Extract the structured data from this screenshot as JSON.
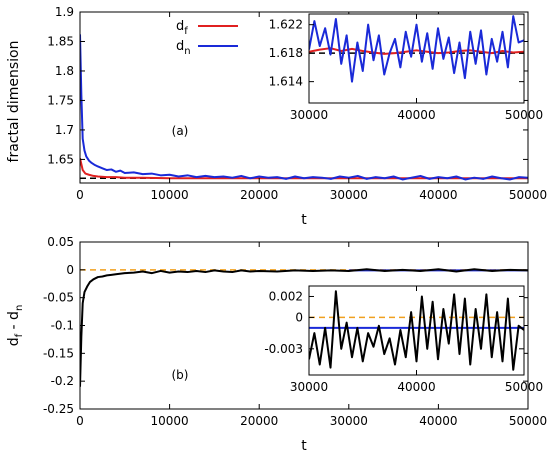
{
  "chart_data": [
    {
      "panel": "main-top",
      "type": "line",
      "ylabel": "fractal dimension",
      "xlabel": "t",
      "panel_label": "(a)",
      "xlim": [
        0,
        50000
      ],
      "ylim": [
        1.61,
        1.9
      ],
      "xticks": [
        0,
        10000,
        20000,
        30000,
        40000,
        50000
      ],
      "xtick_labels": [
        "0",
        "10000",
        "20000",
        "30000",
        "40000",
        "50000"
      ],
      "yticks": [
        1.65,
        1.7,
        1.75,
        1.8,
        1.85,
        1.9
      ],
      "ytick_labels": [
        "1.65",
        "1.7",
        "1.75",
        "1.8",
        "1.85",
        "1.9"
      ],
      "legend": {
        "position": "top-center",
        "entries": [
          {
            "label_base": "d",
            "label_sub": "f",
            "color": "#e02020"
          },
          {
            "label_base": "d",
            "label_sub": "n",
            "color": "#1a2ad8"
          }
        ]
      },
      "reference": {
        "y": 1.618,
        "style": "dashed",
        "color": "#000000"
      },
      "series": [
        {
          "name": "df",
          "color": "#e02020",
          "x": [
            0,
            300,
            600,
            1000,
            1500,
            2000,
            3000,
            4000,
            5000,
            7000,
            10000,
            15000,
            20000,
            30000,
            40000,
            50000
          ],
          "y": [
            1.652,
            1.632,
            1.626,
            1.624,
            1.622,
            1.621,
            1.62,
            1.62,
            1.619,
            1.619,
            1.618,
            1.618,
            1.618,
            1.618,
            1.618,
            1.618
          ]
        },
        {
          "name": "dn",
          "color": "#1a2ad8",
          "x": [
            0,
            150,
            300,
            500,
            700,
            1000,
            1300,
            1600,
            2000,
            2500,
            3000,
            3500,
            4000,
            4500,
            5000,
            6000,
            7000,
            8000,
            9000,
            10000,
            11000,
            12000,
            13000,
            14000,
            15000,
            16000,
            17000,
            18000,
            19000,
            20000,
            21000,
            22000,
            23000,
            24000,
            25000,
            26000,
            27000,
            28000,
            29000,
            30000,
            31000,
            32000,
            33000,
            34000,
            35000,
            36000,
            37000,
            38000,
            39000,
            40000,
            41000,
            42000,
            43000,
            44000,
            45000,
            46000,
            47000,
            48000,
            49000,
            50000
          ],
          "y": [
            1.862,
            1.76,
            1.685,
            1.665,
            1.655,
            1.648,
            1.644,
            1.641,
            1.638,
            1.635,
            1.632,
            1.633,
            1.629,
            1.631,
            1.627,
            1.628,
            1.625,
            1.626,
            1.623,
            1.624,
            1.621,
            1.623,
            1.62,
            1.622,
            1.62,
            1.621,
            1.619,
            1.622,
            1.618,
            1.621,
            1.619,
            1.62,
            1.617,
            1.621,
            1.618,
            1.62,
            1.619,
            1.617,
            1.621,
            1.619,
            1.622,
            1.617,
            1.62,
            1.618,
            1.621,
            1.616,
            1.619,
            1.622,
            1.617,
            1.62,
            1.618,
            1.621,
            1.616,
            1.619,
            1.617,
            1.621,
            1.618,
            1.616,
            1.62,
            1.619
          ]
        }
      ]
    },
    {
      "panel": "inset-top",
      "type": "line",
      "xlim": [
        30000,
        50000
      ],
      "ylim": [
        1.611,
        1.6235
      ],
      "xticks": [
        30000,
        40000,
        50000
      ],
      "xtick_labels": [
        "30000",
        "40000",
        "50000"
      ],
      "yticks": [
        1.614,
        1.618,
        1.622
      ],
      "ytick_labels": [
        "1.614",
        "1.618",
        "1.622"
      ],
      "reference": {
        "y": 1.618,
        "style": "dashed",
        "color": "#000000"
      },
      "series": [
        {
          "name": "df",
          "color": "#e02020",
          "x": [
            30000,
            31000,
            32000,
            33000,
            34000,
            35000,
            36000,
            37000,
            38000,
            39000,
            40000,
            41000,
            42000,
            43000,
            44000,
            45000,
            46000,
            47000,
            48000,
            49000,
            50000
          ],
          "y": [
            1.6182,
            1.6185,
            1.6187,
            1.6183,
            1.6186,
            1.6183,
            1.6181,
            1.6179,
            1.618,
            1.6182,
            1.6184,
            1.6182,
            1.618,
            1.6181,
            1.6183,
            1.6184,
            1.6182,
            1.618,
            1.6183,
            1.6181,
            1.6182
          ]
        },
        {
          "name": "dn",
          "color": "#1a2ad8",
          "x": [
            30000,
            30500,
            31000,
            31500,
            32000,
            32500,
            33000,
            33500,
            34000,
            34500,
            35000,
            35500,
            36000,
            36500,
            37000,
            37500,
            38000,
            38500,
            39000,
            39500,
            40000,
            40500,
            41000,
            41500,
            42000,
            42500,
            43000,
            43500,
            44000,
            44500,
            45000,
            45500,
            46000,
            46500,
            47000,
            47500,
            48000,
            48500,
            49000,
            49500,
            50000
          ],
          "y": [
            1.6185,
            1.6225,
            1.619,
            1.6215,
            1.6178,
            1.6228,
            1.6165,
            1.6205,
            1.614,
            1.6195,
            1.6155,
            1.622,
            1.617,
            1.6205,
            1.615,
            1.618,
            1.62,
            1.616,
            1.621,
            1.6175,
            1.622,
            1.6168,
            1.6208,
            1.6158,
            1.6215,
            1.6172,
            1.6202,
            1.6152,
            1.6195,
            1.6145,
            1.621,
            1.6165,
            1.6212,
            1.615,
            1.62,
            1.6168,
            1.621,
            1.616,
            1.6232,
            1.6195,
            1.6198
          ]
        }
      ]
    },
    {
      "panel": "main-bottom",
      "type": "line",
      "ylabel_base": "d",
      "ylabel_sub1": "f",
      "ylabel_mid": " - d",
      "ylabel_sub2": "n",
      "xlabel": "t",
      "panel_label": "(b)",
      "xlim": [
        0,
        50000
      ],
      "ylim": [
        -0.25,
        0.05
      ],
      "xticks": [
        0,
        10000,
        20000,
        30000,
        40000,
        50000
      ],
      "xtick_labels": [
        "0",
        "10000",
        "20000",
        "30000",
        "40000",
        "50000"
      ],
      "yticks": [
        0.05,
        0,
        -0.05,
        -0.1,
        -0.15,
        -0.2,
        -0.25
      ],
      "ytick_labels": [
        "0.05",
        "0",
        "-0.05",
        "-0.1",
        "-0.15",
        "-0.2",
        "-0.25"
      ],
      "reference_lines": [
        {
          "y": 0,
          "style": "dashed",
          "color": "#f0a020"
        },
        {
          "y": -0.001,
          "style": "solid",
          "color": "#1a2ad8",
          "x_from": 30000
        }
      ],
      "series": [
        {
          "name": "df - dn",
          "color": "#000000",
          "x": [
            0,
            150,
            300,
            500,
            800,
            1100,
            1500,
            2000,
            2500,
            3000,
            3500,
            4000,
            5000,
            6000,
            7000,
            8000,
            9000,
            10000,
            11000,
            12000,
            13000,
            14000,
            15000,
            16000,
            17000,
            18000,
            19000,
            20000,
            22000,
            24000,
            26000,
            28000,
            30000,
            32000,
            34000,
            36000,
            38000,
            40000,
            42000,
            44000,
            46000,
            48000,
            50000
          ],
          "y": [
            -0.21,
            -0.12,
            -0.06,
            -0.04,
            -0.03,
            -0.022,
            -0.017,
            -0.013,
            -0.012,
            -0.01,
            -0.009,
            -0.008,
            -0.006,
            -0.005,
            -0.003,
            -0.006,
            -0.002,
            -0.005,
            -0.003,
            -0.004,
            -0.002,
            -0.004,
            -0.001,
            -0.003,
            -0.004,
            -0.001,
            -0.003,
            -0.002,
            -0.003,
            -0.001,
            -0.002,
            -0.001,
            -0.002,
            0.001,
            -0.002,
            0.0,
            -0.002,
            0.001,
            -0.003,
            0.001,
            -0.002,
            0.0,
            -0.001
          ]
        }
      ]
    },
    {
      "panel": "inset-bottom",
      "type": "line",
      "xlim": [
        30000,
        50000
      ],
      "ylim": [
        -0.0055,
        0.003
      ],
      "xticks": [
        30000,
        40000,
        50000
      ],
      "xtick_labels": [
        "30000",
        "40000",
        "50000"
      ],
      "yticks": [
        0.002,
        0,
        -0.003
      ],
      "ytick_labels": [
        "0.002",
        "0",
        "-0.003"
      ],
      "reference_lines": [
        {
          "y": 0,
          "style": "dashed",
          "color": "#f0a020"
        },
        {
          "y": -0.001,
          "style": "solid",
          "color": "#1a2ad8"
        }
      ],
      "series": [
        {
          "name": "df - dn",
          "color": "#000000",
          "x": [
            30000,
            30500,
            31000,
            31500,
            32000,
            32500,
            33000,
            33500,
            34000,
            34500,
            35000,
            35500,
            36000,
            36500,
            37000,
            37500,
            38000,
            38500,
            39000,
            39500,
            40000,
            40500,
            41000,
            41500,
            42000,
            42500,
            43000,
            43500,
            44000,
            44500,
            45000,
            45500,
            46000,
            46500,
            47000,
            47500,
            48000,
            48500,
            49000,
            49500,
            50000
          ],
          "y": [
            -0.004,
            -0.0015,
            -0.0045,
            -0.001,
            -0.0048,
            0.0025,
            -0.003,
            -0.0005,
            -0.0038,
            -0.001,
            -0.0042,
            -0.0015,
            -0.0028,
            -0.0008,
            -0.0035,
            -0.002,
            -0.0045,
            -0.0012,
            -0.0038,
            0.0005,
            -0.0042,
            0.002,
            -0.003,
            0.0015,
            -0.004,
            0.0008,
            -0.0025,
            0.0022,
            -0.0035,
            0.0018,
            -0.0045,
            0.0008,
            -0.003,
            0.0022,
            -0.0038,
            0.0005,
            -0.0042,
            0.0018,
            -0.005,
            -0.0008,
            -0.0012
          ]
        }
      ]
    }
  ]
}
